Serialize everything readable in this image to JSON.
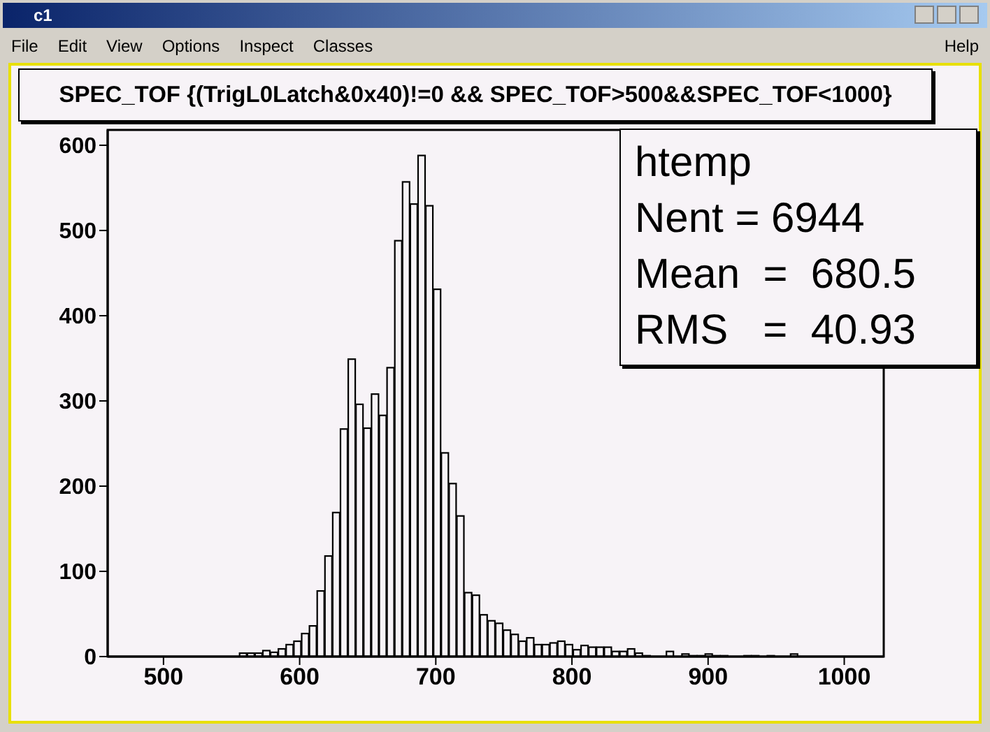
{
  "chart_data": {
    "type": "histogram",
    "title": "SPEC_TOF {(TrigL0Latch&0x40)!=0 && SPEC_TOF>500&&SPEC_TOF<1000}",
    "annotations": [
      "c1",
      "File",
      "Edit",
      "View",
      "Options",
      "Inspect",
      "Classes",
      "Help",
      "htemp",
      "Nent = 6944",
      "Mean  =  680.5",
      "RMS   =  40.93"
    ],
    "bins": [
      459,
      464.7,
      470.4,
      476.1,
      481.8,
      487.5,
      493.2,
      498.9,
      504.6,
      510.3,
      516,
      521.7,
      527.4,
      533.1,
      538.8,
      544.5,
      550.2,
      555.9,
      561.6,
      567.3,
      573,
      578.7,
      584.4,
      590.1,
      595.8,
      601.5,
      607.2,
      612.9,
      618.6,
      624.3,
      630,
      635.7,
      641.4,
      647.1,
      652.8,
      658.5,
      664.2,
      669.9,
      675.6,
      681.3,
      687,
      692.7,
      698.4,
      704.1,
      709.8,
      715.5,
      721.2,
      726.9,
      732.6,
      738.3,
      744,
      749.7,
      755.4,
      761.1,
      766.8,
      772.5,
      778.2,
      783.9,
      789.6,
      795.3,
      801,
      806.7,
      812.4,
      818.1,
      823.8,
      829.5,
      835.2,
      840.9,
      846.6,
      852.3,
      858,
      863.7,
      869.4,
      875.1,
      880.8,
      886.5,
      892.2,
      897.9,
      903.6,
      909.3,
      915,
      920.7,
      926.4,
      932.1,
      937.8,
      943.5,
      949.2,
      954.9,
      960.6,
      966.3,
      972,
      977.7,
      983.4,
      989.1,
      994.8,
      1000.5,
      1006.2,
      1011.9,
      1017.6,
      1023.3,
      1029
    ],
    "values": [
      0,
      0,
      0,
      0,
      0,
      0,
      0,
      0,
      0,
      0,
      0,
      0,
      0,
      0,
      0,
      0,
      0,
      4,
      4,
      4,
      7,
      5,
      9,
      14,
      18,
      27,
      36,
      77,
      118,
      169,
      267,
      349,
      296,
      268,
      308,
      283,
      339,
      488,
      557,
      531,
      588,
      529,
      431,
      239,
      203,
      165,
      75,
      72,
      49,
      42,
      39,
      31,
      26,
      18,
      22,
      14,
      14,
      16,
      18,
      14,
      8,
      13,
      11,
      11,
      11,
      6,
      6,
      9,
      4,
      1,
      0,
      0,
      6,
      0,
      3,
      1,
      1,
      3,
      1,
      1,
      0,
      0,
      1,
      1,
      0,
      1,
      0,
      0,
      3,
      0,
      0,
      0,
      0,
      0,
      0,
      0,
      0,
      0,
      0,
      0
    ],
    "color": "#000000",
    "xlim": [
      459,
      1029
    ],
    "ylim": [
      0,
      618
    ],
    "xticks": [
      500,
      600,
      700,
      800,
      900,
      1000
    ],
    "yticks": [
      0,
      100,
      200,
      300,
      400,
      500,
      600
    ]
  }
}
